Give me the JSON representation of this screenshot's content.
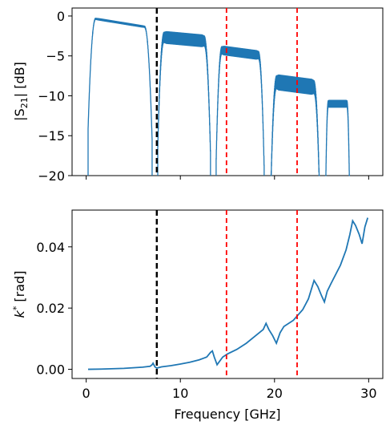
{
  "chart_data": [
    {
      "type": "line",
      "ylabel": "|S21| [dB]",
      "ylabel_main": "|S",
      "ylabel_sub": "21",
      "ylabel_rest": "| [dB]",
      "xlim": [
        -1.5,
        31.5
      ],
      "ylim": [
        -20,
        1
      ],
      "x_ticks": [
        0,
        10,
        20,
        30
      ],
      "x_tick_labels_visible": false,
      "y_ticks": [
        0,
        -5,
        -10,
        -15,
        -20
      ],
      "y_tick_labels": [
        "0",
        "−5",
        "−10",
        "−15",
        "−20"
      ],
      "series_color": "#1f77b4",
      "vlines": [
        {
          "x": 7.5,
          "color": "#000000",
          "style": "dashed"
        },
        {
          "x": 14.9,
          "color": "#ff0000",
          "style": "dashed"
        },
        {
          "x": 22.4,
          "color": "#ff0000",
          "style": "dashed"
        }
      ],
      "passbands": [
        {
          "x_start": 0.2,
          "x_end": 7.0,
          "level_start": -0.2,
          "level_end": -1.5,
          "ripple": 0.15
        },
        {
          "x_start": 7.6,
          "x_end": 13.2,
          "level_start": -2.6,
          "level_end": -3.2,
          "ripple": 0.8
        },
        {
          "x_start": 13.8,
          "x_end": 18.9,
          "level_start": -4.2,
          "level_end": -5.0,
          "ripple": 0.6
        },
        {
          "x_start": 19.6,
          "x_end": 24.8,
          "level_start": -8.2,
          "level_end": -9.0,
          "ripple": 1.0
        },
        {
          "x_start": 25.4,
          "x_end": 28.0,
          "level_start": -11.0,
          "level_end": -11.0,
          "ripple": 0.5
        }
      ]
    },
    {
      "type": "line",
      "xlabel": "Frequency [GHz]",
      "ylabel": "k* [rad]",
      "ylabel_main": "k",
      "ylabel_sup": "*",
      "ylabel_rest": " [rad]",
      "xlim": [
        -1.5,
        31.5
      ],
      "ylim": [
        -0.003,
        0.052
      ],
      "x_ticks": [
        0,
        10,
        20,
        30
      ],
      "x_tick_labels": [
        "0",
        "10",
        "20",
        "30"
      ],
      "y_ticks": [
        0.0,
        0.02,
        0.04
      ],
      "y_tick_labels": [
        "0.00",
        "0.02",
        "0.04"
      ],
      "series_color": "#1f77b4",
      "vlines": [
        {
          "x": 7.5,
          "color": "#000000",
          "style": "dashed"
        },
        {
          "x": 14.9,
          "color": "#ff0000",
          "style": "dashed"
        },
        {
          "x": 22.4,
          "color": "#ff0000",
          "style": "dashed"
        }
      ],
      "x": [
        0.2,
        2,
        4,
        6,
        6.8,
        7.0,
        7.1,
        7.3,
        7.5,
        8,
        9,
        10,
        11,
        12,
        12.8,
        13.2,
        13.4,
        13.6,
        13.9,
        14.5,
        15,
        16,
        17,
        18,
        18.8,
        19.1,
        19.4,
        19.8,
        20.2,
        20.6,
        21,
        22,
        23,
        23.6,
        24.0,
        24.2,
        24.6,
        25.0,
        25.3,
        25.6,
        26,
        27,
        27.6,
        28.0,
        28.3,
        28.6,
        29,
        29.3,
        29.6,
        29.9
      ],
      "y": [
        0.0,
        0.0001,
        0.0003,
        0.0007,
        0.001,
        0.0015,
        0.002,
        0.0008,
        0.0004,
        0.0008,
        0.0012,
        0.0017,
        0.0023,
        0.0031,
        0.004,
        0.0055,
        0.006,
        0.004,
        0.0015,
        0.004,
        0.005,
        0.0065,
        0.0085,
        0.011,
        0.013,
        0.015,
        0.013,
        0.011,
        0.0085,
        0.012,
        0.014,
        0.016,
        0.0195,
        0.023,
        0.027,
        0.029,
        0.027,
        0.024,
        0.022,
        0.0255,
        0.028,
        0.034,
        0.039,
        0.044,
        0.0485,
        0.047,
        0.044,
        0.041,
        0.0465,
        0.0495
      ]
    }
  ]
}
